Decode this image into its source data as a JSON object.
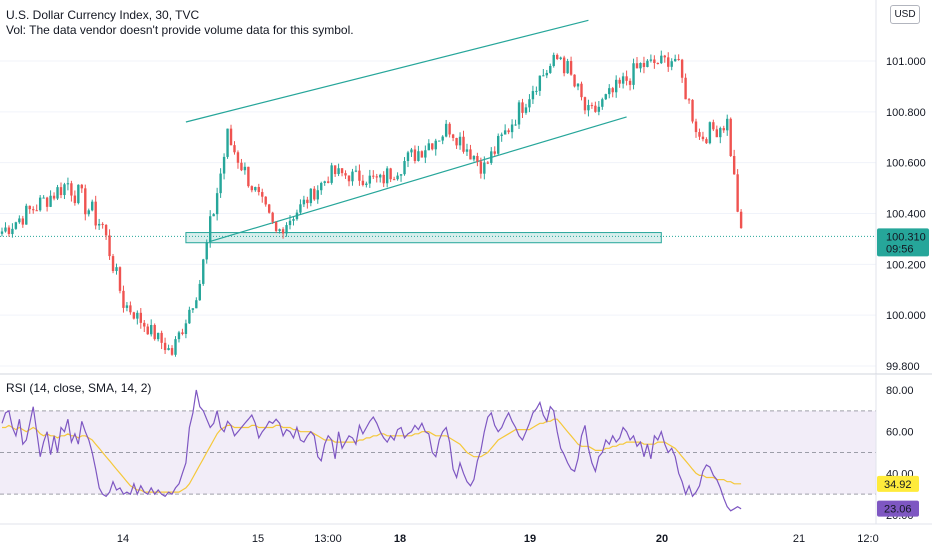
{
  "header": {
    "title": "U.S. Dollar Currency Index, 30, TVC",
    "volume_note": "Vol: The data vendor doesn't provide volume data for this symbol."
  },
  "currency_badge": "USD",
  "colors": {
    "up": "#26a69a",
    "down": "#ef5350",
    "rsi_line": "#7e57c2",
    "rsi_ma": "#f5c83a",
    "rsi_band": "#ede7f6",
    "drawing": "#26a69a",
    "price_badge": "#26a69a",
    "rsi_badge": "#7e57c2",
    "ma_badge": "#ffeb3b"
  },
  "chart_data": [
    {
      "type": "candlestick",
      "title": "U.S. Dollar Currency Index, 30, TVC",
      "ylim": [
        99.78,
        101.2
      ],
      "y_ticks": [
        "101.000",
        "100.800",
        "100.600",
        "100.400",
        "100.200",
        "100.000",
        "99.800"
      ],
      "x_ticks": [
        "14",
        "15",
        "13:00",
        "18",
        "19",
        "20",
        "21",
        "12:0"
      ],
      "last_price": "100.310",
      "countdown": "09:56",
      "segments": [
        {
          "from_bar": 0,
          "to_bar": 20,
          "start": 100.32,
          "end": 100.52,
          "noise": 0.04
        },
        {
          "from_bar": 20,
          "to_bar": 30,
          "start": 100.52,
          "end": 100.35,
          "noise": 0.05
        },
        {
          "from_bar": 30,
          "to_bar": 36,
          "start": 100.35,
          "end": 100.05,
          "noise": 0.04
        },
        {
          "from_bar": 36,
          "to_bar": 50,
          "start": 100.05,
          "end": 99.85,
          "noise": 0.03
        },
        {
          "from_bar": 50,
          "to_bar": 58,
          "start": 99.85,
          "end": 100.13,
          "noise": 0.04
        },
        {
          "from_bar": 58,
          "to_bar": 66,
          "start": 100.13,
          "end": 100.7,
          "noise": 0.05
        },
        {
          "from_bar": 66,
          "to_bar": 80,
          "start": 100.7,
          "end": 100.32,
          "noise": 0.04
        },
        {
          "from_bar": 80,
          "to_bar": 96,
          "start": 100.32,
          "end": 100.56,
          "noise": 0.03
        },
        {
          "from_bar": 96,
          "to_bar": 110,
          "start": 100.56,
          "end": 100.53,
          "noise": 0.03
        },
        {
          "from_bar": 110,
          "to_bar": 130,
          "start": 100.53,
          "end": 100.74,
          "noise": 0.04
        },
        {
          "from_bar": 130,
          "to_bar": 140,
          "start": 100.74,
          "end": 100.58,
          "noise": 0.04
        },
        {
          "from_bar": 140,
          "to_bar": 155,
          "start": 100.58,
          "end": 100.92,
          "noise": 0.04
        },
        {
          "from_bar": 155,
          "to_bar": 162,
          "start": 100.92,
          "end": 101.02,
          "noise": 0.04
        },
        {
          "from_bar": 162,
          "to_bar": 170,
          "start": 101.02,
          "end": 100.78,
          "noise": 0.05
        },
        {
          "from_bar": 170,
          "to_bar": 185,
          "start": 100.78,
          "end": 100.98,
          "noise": 0.04
        },
        {
          "from_bar": 185,
          "to_bar": 195,
          "start": 100.98,
          "end": 101.01,
          "noise": 0.03
        },
        {
          "from_bar": 195,
          "to_bar": 202,
          "start": 101.01,
          "end": 100.7,
          "noise": 0.04
        },
        {
          "from_bar": 202,
          "to_bar": 210,
          "start": 100.7,
          "end": 100.76,
          "noise": 0.04
        },
        {
          "from_bar": 210,
          "to_bar": 214,
          "start": 100.76,
          "end": 100.31,
          "noise": 0.04
        }
      ],
      "total_bars": 214,
      "drawings": {
        "channel_upper": {
          "from_bar": 53,
          "to_bar": 169,
          "from_price": 100.76,
          "to_price": 101.16
        },
        "channel_lower": {
          "from_bar": 60,
          "to_bar": 180,
          "from_price": 100.29,
          "to_price": 100.78
        },
        "support_zone": {
          "from_bar": 53,
          "to_bar": 190,
          "top": 100.325,
          "bottom": 100.285
        }
      }
    },
    {
      "type": "line",
      "title": "RSI (14, close, SMA, 14, 2)",
      "ylim": [
        17,
        84
      ],
      "y_ticks": [
        "80.00",
        "60.00",
        "40.00",
        "20.00"
      ],
      "bands": {
        "upper": 70,
        "middle": 50,
        "lower": 30
      },
      "rsi_value": "23.06",
      "ma_value": "34.92",
      "series": [
        {
          "values": [
            64,
            69,
            70,
            62,
            58,
            66,
            54,
            56,
            64,
            72,
            60,
            48,
            55,
            60,
            49,
            58,
            50,
            62,
            60,
            66,
            55,
            59,
            54,
            65,
            60,
            56,
            50,
            42,
            33,
            30,
            29,
            31,
            36,
            32,
            33,
            30,
            31,
            30,
            35,
            30,
            34,
            31,
            30,
            33,
            30,
            32,
            30,
            29,
            31,
            30,
            33,
            35,
            40,
            45,
            62,
            69,
            80,
            72,
            70,
            66,
            62,
            64,
            70,
            62,
            60,
            65,
            63,
            58,
            60,
            62,
            64,
            66,
            68,
            64,
            57,
            60,
            62,
            65,
            64,
            66,
            64,
            58,
            61,
            60,
            57,
            62,
            56,
            55,
            58,
            60,
            58,
            48,
            46,
            54,
            58,
            56,
            47,
            60,
            52,
            55,
            58,
            57,
            54,
            63,
            59,
            62,
            65,
            67,
            64,
            60,
            57,
            55,
            58,
            56,
            61,
            62,
            57,
            59,
            60,
            63,
            61,
            64,
            60,
            59,
            50,
            48,
            56,
            60,
            62,
            55,
            42,
            38,
            45,
            40,
            36,
            34,
            37,
            46,
            51,
            60,
            67,
            69,
            63,
            60,
            62,
            66,
            69,
            65,
            62,
            58,
            56,
            60,
            64,
            69,
            71,
            74,
            68,
            65,
            72,
            70,
            60,
            52,
            49,
            45,
            42,
            41,
            47,
            58,
            63,
            52,
            45,
            41,
            48,
            50,
            56,
            54,
            58,
            55,
            57,
            62,
            60,
            56,
            58,
            53,
            55,
            48,
            54,
            47,
            58,
            56,
            60,
            54,
            50,
            52,
            48,
            40,
            36,
            30,
            34,
            29,
            31,
            34,
            41,
            44,
            43,
            39,
            37,
            33,
            28,
            24,
            22,
            23,
            24,
            23
          ]
        },
        {
          "values": [
            62,
            62,
            63,
            62,
            61,
            62,
            61,
            60,
            61,
            62,
            61,
            59,
            58,
            59,
            58,
            58,
            57,
            58,
            58,
            59,
            58,
            58,
            57,
            58,
            58,
            57,
            56,
            54,
            52,
            50,
            48,
            46,
            44,
            42,
            40,
            38,
            36,
            34,
            33,
            32,
            32,
            31,
            31,
            31,
            31,
            31,
            31,
            31,
            31,
            31,
            31,
            31,
            32,
            33,
            35,
            38,
            41,
            44,
            47,
            50,
            53,
            56,
            59,
            61,
            62,
            63,
            63,
            62,
            62,
            62,
            62,
            62,
            63,
            63,
            62,
            62,
            62,
            62,
            62,
            63,
            63,
            62,
            62,
            62,
            61,
            61,
            60,
            60,
            60,
            60,
            59,
            58,
            57,
            56,
            56,
            56,
            55,
            55,
            55,
            55,
            55,
            55,
            55,
            56,
            56,
            57,
            57,
            58,
            58,
            59,
            59,
            58,
            58,
            58,
            58,
            58,
            58,
            58,
            58,
            59,
            59,
            60,
            60,
            60,
            59,
            58,
            58,
            58,
            58,
            57,
            56,
            55,
            54,
            52,
            50,
            49,
            48,
            48,
            48,
            49,
            50,
            52,
            54,
            56,
            57,
            58,
            59,
            60,
            61,
            61,
            61,
            61,
            61,
            62,
            63,
            64,
            64,
            65,
            65,
            66,
            66,
            64,
            62,
            60,
            58,
            56,
            54,
            53,
            53,
            53,
            52,
            51,
            51,
            51,
            52,
            52,
            53,
            53,
            54,
            54,
            55,
            55,
            55,
            55,
            55,
            54,
            54,
            54,
            54,
            55,
            55,
            55,
            54,
            53,
            52,
            50,
            48,
            46,
            44,
            42,
            40,
            39,
            39,
            38,
            38,
            38,
            37,
            37,
            37,
            36,
            36,
            35,
            35,
            35
          ]
        }
      ]
    }
  ]
}
